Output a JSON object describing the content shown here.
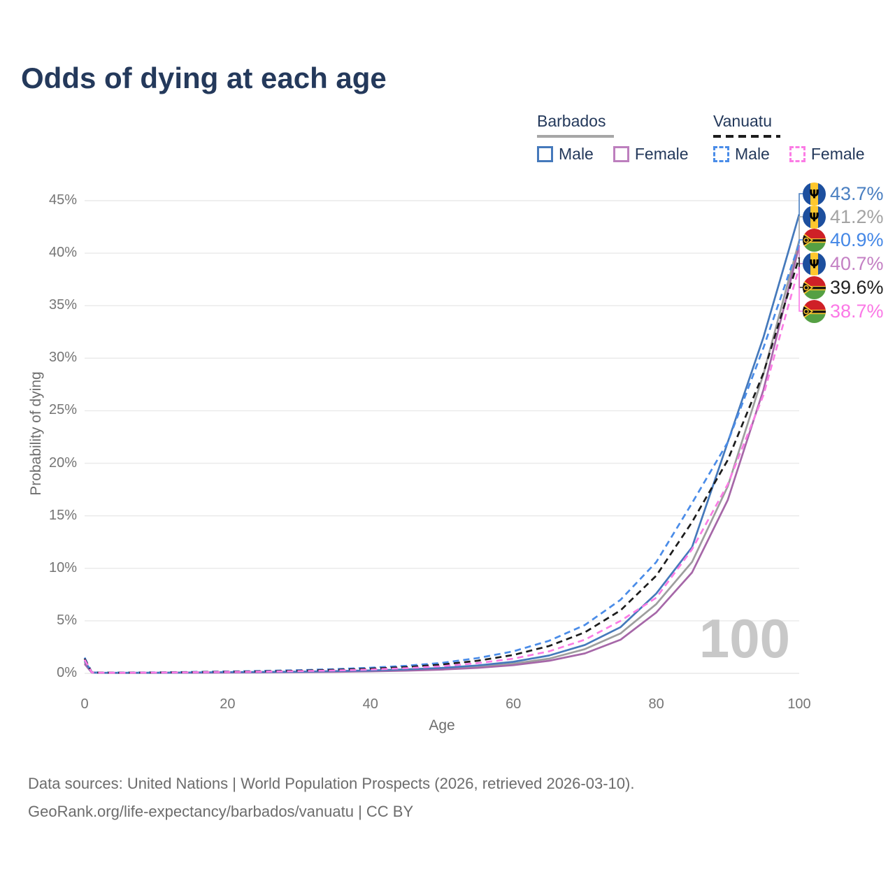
{
  "header": {
    "title": "Odds of dying at each age"
  },
  "legend": {
    "groups": [
      {
        "label": "Barbados",
        "line_style": "solid",
        "underline_color": "#a6a6a6",
        "items": [
          {
            "label": "Male",
            "color": "#4579bb"
          },
          {
            "label": "Female",
            "color": "#bd7fbe"
          }
        ]
      },
      {
        "label": "Vanuatu",
        "line_style": "dashed",
        "underline_color": "#1c1c1c",
        "items": [
          {
            "label": "Male",
            "color": "#4a8ce8"
          },
          {
            "label": "Female",
            "color": "#fb7ce5"
          }
        ]
      }
    ]
  },
  "chart_data": {
    "type": "line",
    "title": "Odds of dying at each age",
    "xlabel": "Age",
    "ylabel": "Probability of dying",
    "xlim": [
      0,
      100
    ],
    "ylim": [
      0,
      45
    ],
    "xticks": [
      0,
      20,
      40,
      60,
      80,
      100
    ],
    "yticks": [
      0,
      5,
      10,
      15,
      20,
      25,
      30,
      35,
      40,
      45
    ],
    "grid": "horizontal-only",
    "legend_position": "top-right",
    "watermark": "100",
    "x": [
      0,
      1,
      2,
      5,
      10,
      15,
      20,
      25,
      30,
      35,
      40,
      45,
      50,
      55,
      60,
      65,
      70,
      75,
      80,
      85,
      90,
      95,
      100
    ],
    "series": [
      {
        "name": "Barbados Total",
        "country": "Barbados",
        "sex": "total",
        "style": "solid",
        "color": "#9e9e9e",
        "values": [
          1.05,
          0.08,
          0.05,
          0.045,
          0.05,
          0.07,
          0.09,
          0.11,
          0.13,
          0.17,
          0.22,
          0.3,
          0.43,
          0.62,
          0.92,
          1.4,
          2.3,
          3.8,
          6.6,
          10.6,
          17.8,
          28.5,
          41.2
        ]
      },
      {
        "name": "Barbados Female",
        "country": "Barbados",
        "sex": "female",
        "style": "solid",
        "color": "#a667a8",
        "values": [
          0.9,
          0.07,
          0.045,
          0.04,
          0.045,
          0.06,
          0.07,
          0.09,
          0.11,
          0.14,
          0.19,
          0.26,
          0.36,
          0.52,
          0.78,
          1.2,
          1.9,
          3.2,
          5.8,
          9.6,
          16.5,
          27.0,
          40.7
        ]
      },
      {
        "name": "Barbados Male",
        "country": "Barbados",
        "sex": "male",
        "style": "solid",
        "color": "#4579bb",
        "values": [
          1.2,
          0.09,
          0.06,
          0.05,
          0.06,
          0.08,
          0.11,
          0.13,
          0.16,
          0.21,
          0.27,
          0.37,
          0.52,
          0.75,
          1.1,
          1.7,
          2.7,
          4.4,
          7.6,
          12.0,
          22.0,
          32.0,
          43.7
        ]
      },
      {
        "name": "Vanuatu Male",
        "country": "Vanuatu",
        "sex": "male",
        "style": "dashed",
        "color": "#4a8ce8",
        "values": [
          1.5,
          0.11,
          0.08,
          0.07,
          0.09,
          0.13,
          0.18,
          0.23,
          0.3,
          0.4,
          0.53,
          0.72,
          1.0,
          1.45,
          2.1,
          3.1,
          4.6,
          7.0,
          10.6,
          16.2,
          22.0,
          31.0,
          40.9
        ]
      },
      {
        "name": "Vanuatu Total",
        "country": "Vanuatu",
        "sex": "total",
        "style": "dashed",
        "color": "#1c1c1c",
        "values": [
          1.4,
          0.1,
          0.07,
          0.06,
          0.08,
          0.11,
          0.15,
          0.19,
          0.25,
          0.33,
          0.44,
          0.6,
          0.84,
          1.2,
          1.75,
          2.6,
          3.9,
          6.0,
          9.3,
          14.4,
          20.3,
          28.6,
          39.6
        ]
      },
      {
        "name": "Vanuatu Female",
        "country": "Vanuatu",
        "sex": "female",
        "style": "dashed",
        "color": "#fb7ce5",
        "values": [
          1.3,
          0.09,
          0.065,
          0.055,
          0.07,
          0.1,
          0.13,
          0.16,
          0.21,
          0.27,
          0.36,
          0.49,
          0.68,
          0.97,
          1.4,
          2.1,
          3.2,
          5.0,
          7.2,
          11.8,
          18.0,
          26.5,
          38.7
        ]
      }
    ],
    "end_labels": [
      {
        "flag": "barbados",
        "series": "Barbados Male",
        "value": 43.7,
        "label": "43.7%",
        "color": "#4a7fc1"
      },
      {
        "flag": "barbados",
        "series": "Barbados Total",
        "value": 41.2,
        "label": "41.2%",
        "color": "#a3a3a3"
      },
      {
        "flag": "vanuatu",
        "series": "Vanuatu Male",
        "value": 40.9,
        "label": "40.9%",
        "color": "#4487e6"
      },
      {
        "flag": "barbados",
        "series": "Barbados Female",
        "value": 40.7,
        "label": "40.7%",
        "color": "#c480c4"
      },
      {
        "flag": "vanuatu",
        "series": "Vanuatu Total",
        "value": 39.6,
        "label": "39.6%",
        "color": "#222222"
      },
      {
        "flag": "vanuatu",
        "series": "Vanuatu Female",
        "value": 38.7,
        "label": "38.7%",
        "color": "#fb78e6"
      }
    ]
  },
  "footer": {
    "line1": "Data sources: United Nations | World Population Prospects (2026, retrieved 2026-03-10).",
    "line2": "GeoRank.org/life-expectancy/barbados/vanuatu | CC BY"
  }
}
